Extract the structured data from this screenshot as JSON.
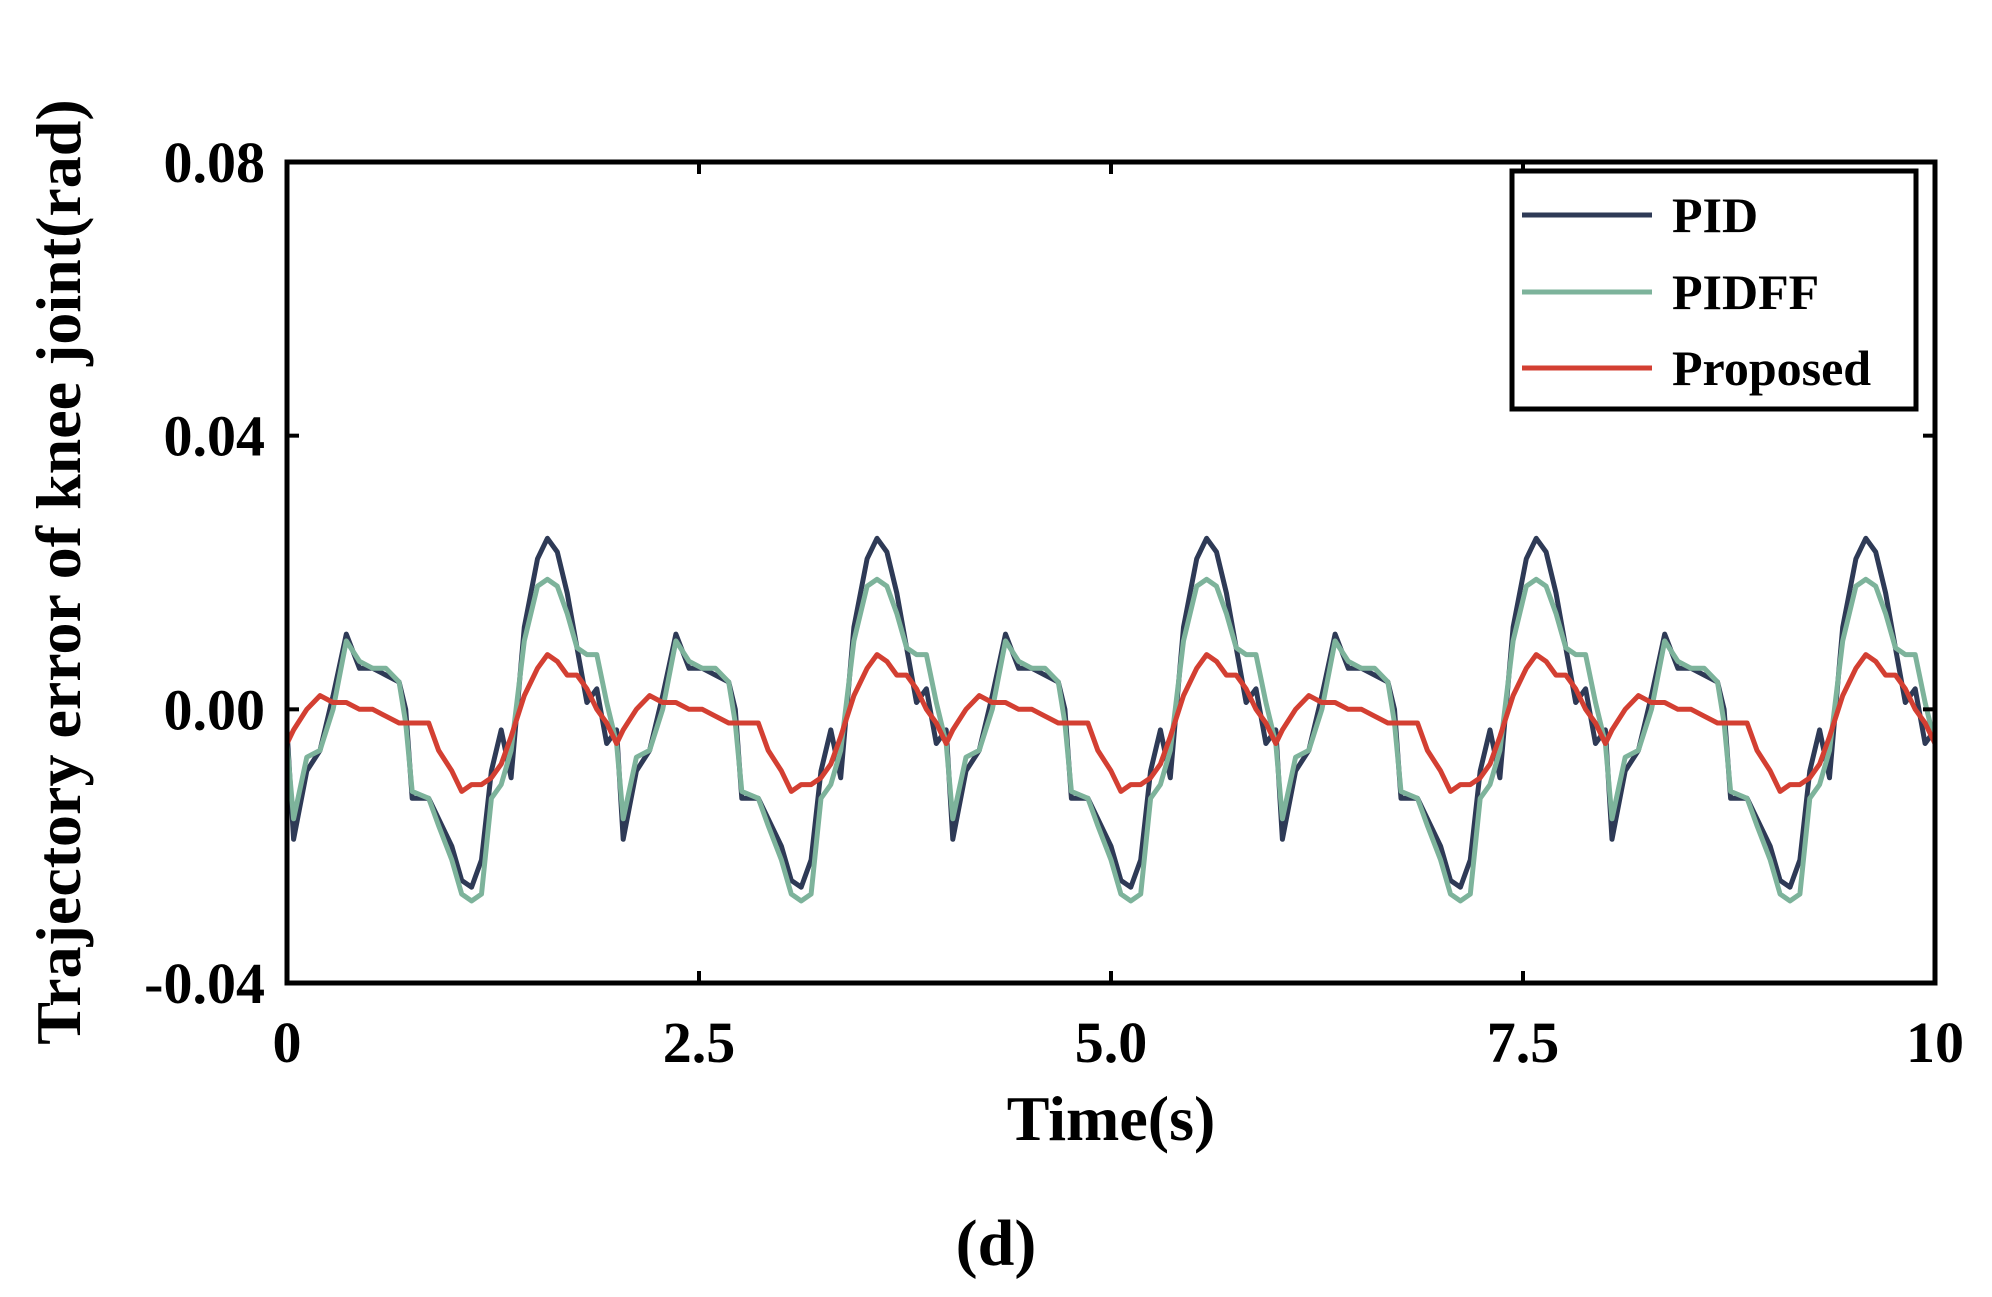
{
  "chart_data": {
    "type": "line",
    "title": "",
    "xlabel": "Time(s)",
    "ylabel": "Trajectory error of knee joint(rad)",
    "caption": "(d)",
    "xlim": [
      0,
      10
    ],
    "ylim": [
      -0.04,
      0.08
    ],
    "xticks": [
      0,
      2.5,
      5,
      7.5,
      10
    ],
    "xtick_labels": [
      "0",
      "2.5",
      "5.0",
      "7.5",
      "10"
    ],
    "yticks": [
      -0.04,
      0.0,
      0.04,
      0.08
    ],
    "ytick_labels": [
      "-0.04",
      "0.00",
      "0.04",
      "0.08"
    ],
    "legend_position": "top-right",
    "period": 2.0,
    "series": [
      {
        "name": "PID",
        "color": "#2e3a56",
        "cycle_points": [
          [
            0.0,
            -0.003
          ],
          [
            0.04,
            -0.019
          ],
          [
            0.12,
            -0.009
          ],
          [
            0.2,
            -0.006
          ],
          [
            0.28,
            0.002
          ],
          [
            0.36,
            0.011
          ],
          [
            0.44,
            0.006
          ],
          [
            0.52,
            0.006
          ],
          [
            0.6,
            0.005
          ],
          [
            0.68,
            0.004
          ],
          [
            0.72,
            0.0
          ],
          [
            0.76,
            -0.013
          ],
          [
            0.86,
            -0.013
          ],
          [
            0.92,
            -0.016
          ],
          [
            1.0,
            -0.02
          ],
          [
            1.06,
            -0.025
          ],
          [
            1.12,
            -0.026
          ],
          [
            1.18,
            -0.022
          ],
          [
            1.24,
            -0.009
          ],
          [
            1.3,
            -0.003
          ],
          [
            1.36,
            -0.01
          ],
          [
            1.44,
            0.012
          ],
          [
            1.52,
            0.022
          ],
          [
            1.58,
            0.025
          ],
          [
            1.64,
            0.023
          ],
          [
            1.7,
            0.017
          ],
          [
            1.76,
            0.009
          ],
          [
            1.82,
            0.001
          ],
          [
            1.88,
            0.003
          ],
          [
            1.94,
            -0.005
          ],
          [
            2.0,
            -0.003
          ]
        ]
      },
      {
        "name": "PIDFF",
        "color": "#7db39b",
        "cycle_points": [
          [
            0.0,
            -0.005
          ],
          [
            0.04,
            -0.016
          ],
          [
            0.12,
            -0.007
          ],
          [
            0.2,
            -0.006
          ],
          [
            0.28,
            0.0
          ],
          [
            0.36,
            0.01
          ],
          [
            0.44,
            0.007
          ],
          [
            0.52,
            0.006
          ],
          [
            0.6,
            0.006
          ],
          [
            0.68,
            0.004
          ],
          [
            0.72,
            -0.002
          ],
          [
            0.76,
            -0.012
          ],
          [
            0.86,
            -0.013
          ],
          [
            0.92,
            -0.017
          ],
          [
            1.0,
            -0.022
          ],
          [
            1.06,
            -0.027
          ],
          [
            1.12,
            -0.028
          ],
          [
            1.18,
            -0.027
          ],
          [
            1.24,
            -0.013
          ],
          [
            1.3,
            -0.011
          ],
          [
            1.36,
            -0.006
          ],
          [
            1.44,
            0.01
          ],
          [
            1.52,
            0.018
          ],
          [
            1.58,
            0.019
          ],
          [
            1.64,
            0.018
          ],
          [
            1.7,
            0.014
          ],
          [
            1.76,
            0.009
          ],
          [
            1.82,
            0.008
          ],
          [
            1.88,
            0.008
          ],
          [
            1.94,
            0.001
          ],
          [
            2.0,
            -0.005
          ]
        ]
      },
      {
        "name": "Proposed",
        "color": "#d33f32",
        "cycle_points": [
          [
            0.0,
            -0.005
          ],
          [
            0.04,
            -0.003
          ],
          [
            0.12,
            0.0
          ],
          [
            0.2,
            0.002
          ],
          [
            0.28,
            0.001
          ],
          [
            0.36,
            0.001
          ],
          [
            0.44,
            0.0
          ],
          [
            0.52,
            0.0
          ],
          [
            0.6,
            -0.001
          ],
          [
            0.68,
            -0.002
          ],
          [
            0.76,
            -0.002
          ],
          [
            0.86,
            -0.002
          ],
          [
            0.92,
            -0.006
          ],
          [
            1.0,
            -0.009
          ],
          [
            1.06,
            -0.012
          ],
          [
            1.12,
            -0.011
          ],
          [
            1.18,
            -0.011
          ],
          [
            1.24,
            -0.01
          ],
          [
            1.3,
            -0.008
          ],
          [
            1.36,
            -0.004
          ],
          [
            1.44,
            0.002
          ],
          [
            1.52,
            0.006
          ],
          [
            1.58,
            0.008
          ],
          [
            1.64,
            0.007
          ],
          [
            1.7,
            0.005
          ],
          [
            1.76,
            0.005
          ],
          [
            1.82,
            0.003
          ],
          [
            1.88,
            0.0
          ],
          [
            1.94,
            -0.002
          ],
          [
            2.0,
            -0.005
          ]
        ]
      }
    ]
  }
}
